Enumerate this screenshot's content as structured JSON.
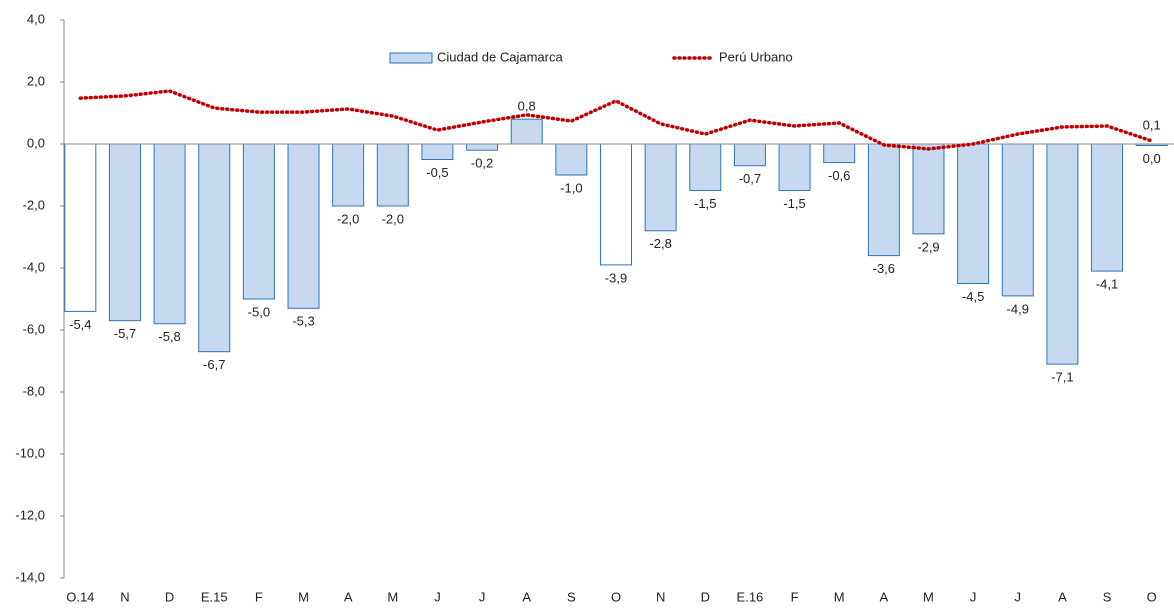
{
  "chart_data": {
    "type": "bar",
    "categories": [
      "O.14",
      "N",
      "D",
      "E.15",
      "F",
      "M",
      "A",
      "M",
      "J",
      "J",
      "A",
      "S",
      "O",
      "N",
      "D",
      "E.16",
      "F",
      "M",
      "A",
      "M",
      "J",
      "J",
      "A",
      "S",
      "O"
    ],
    "series": [
      {
        "name": "Ciudad de Cajamarca",
        "type": "bar",
        "color": "#c6d9f1",
        "edge_color": "#2e75b6",
        "colors": [
          "#ffffff",
          "#c6d9f1",
          "#c6d9f1",
          "#c6d9f1",
          "#c6d9f1",
          "#c6d9f1",
          "#c6d9f1",
          "#c6d9f1",
          "#c6d9f1",
          "#c6d9f1",
          "#c6d9f1",
          "#c6d9f1",
          "#ffffff",
          "#c6d9f1",
          "#c6d9f1",
          "#c6d9f1",
          "#c6d9f1",
          "#c6d9f1",
          "#c6d9f1",
          "#c6d9f1",
          "#c6d9f1",
          "#c6d9f1",
          "#c6d9f1",
          "#c6d9f1",
          "#c6d9f1"
        ],
        "values": [
          -5.4,
          -5.7,
          -5.8,
          -6.7,
          -5.0,
          -5.3,
          -2.0,
          -2.0,
          -0.5,
          -0.2,
          0.8,
          -1.0,
          -3.9,
          -2.8,
          -1.5,
          -0.7,
          -1.5,
          -0.6,
          -3.6,
          -2.9,
          -4.5,
          -4.9,
          -7.1,
          -4.1,
          0.0
        ],
        "value_labels": [
          "-5,4",
          "-5,7",
          "-5,8",
          "-6,7",
          "-5,0",
          "-5,3",
          "-2,0",
          "-2,0",
          "-0,5",
          "-0,2",
          "0,8",
          "-1,0",
          "-3,9",
          "-2,8",
          "-1,5",
          "-0,7",
          "-1,5",
          "-0,6",
          "-3,6",
          "-2,9",
          "-4,5",
          "-4,9",
          "-7,1",
          "-4,1",
          "0,0"
        ]
      },
      {
        "name": "Perú Urbano",
        "type": "line",
        "color": "#c00000",
        "values": [
          1.48,
          1.55,
          1.71,
          1.16,
          1.03,
          1.03,
          1.13,
          0.9,
          0.45,
          0.71,
          0.94,
          0.74,
          1.39,
          0.65,
          0.32,
          0.77,
          0.58,
          0.68,
          -0.03,
          -0.16,
          0.0,
          0.32,
          0.55,
          0.58,
          0.1
        ],
        "value_labels": [
          null,
          null,
          null,
          null,
          null,
          null,
          null,
          null,
          null,
          null,
          null,
          null,
          null,
          null,
          null,
          null,
          null,
          null,
          null,
          null,
          null,
          null,
          null,
          null,
          "0,1"
        ]
      }
    ],
    "ylim": [
      -14,
      4
    ],
    "yticks": [
      {
        "value": -14,
        "label": "-14,0"
      },
      {
        "value": -12,
        "label": "-12,0"
      },
      {
        "value": -10,
        "label": "-10,0"
      },
      {
        "value": -8,
        "label": "-8,0"
      },
      {
        "value": -6,
        "label": "-6,0"
      },
      {
        "value": -4,
        "label": "-4,0"
      },
      {
        "value": -2,
        "label": "-2,0"
      },
      {
        "value": 0,
        "label": "0,0"
      },
      {
        "value": 2,
        "label": "2,0"
      },
      {
        "value": 4,
        "label": "4,0"
      }
    ],
    "grid": false,
    "legend": "top"
  }
}
